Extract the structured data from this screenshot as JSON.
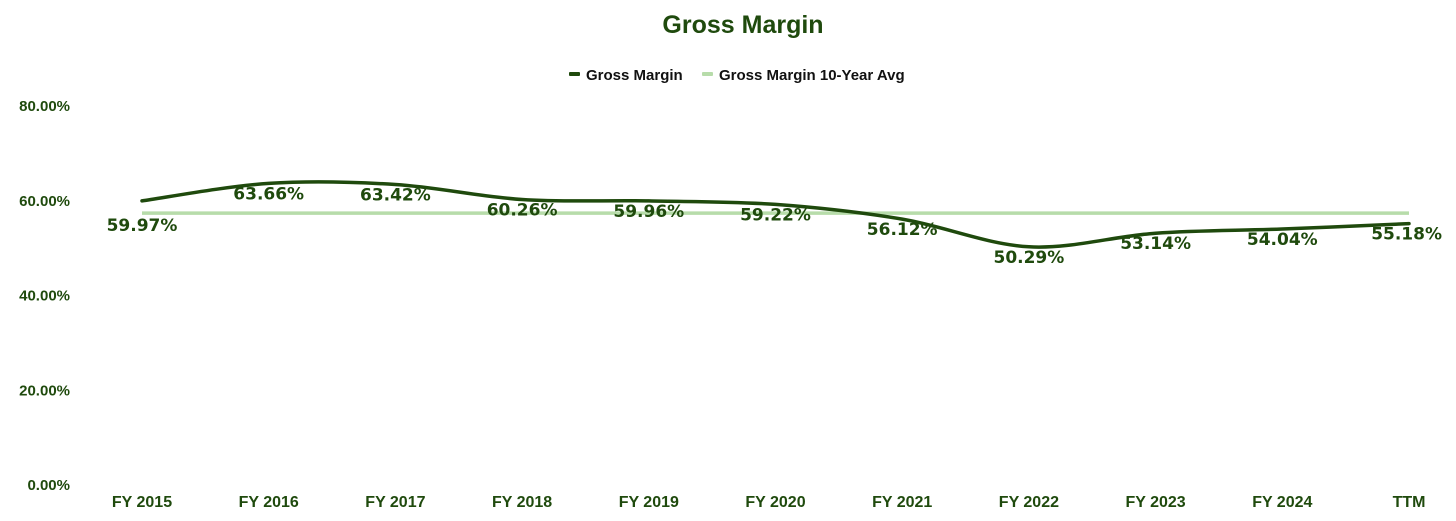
{
  "chart_data": {
    "type": "line",
    "title": "Gross Margin",
    "categories": [
      "FY 2015",
      "FY 2016",
      "FY 2017",
      "FY 2018",
      "FY 2019",
      "FY 2020",
      "FY 2021",
      "FY 2022",
      "FY 2023",
      "FY 2024",
      "TTM"
    ],
    "series": [
      {
        "name": "Gross Margin",
        "color": "#1f4a0d",
        "values": [
          59.97,
          63.66,
          63.42,
          60.26,
          59.96,
          59.22,
          56.12,
          50.29,
          53.14,
          54.04,
          55.18
        ],
        "labels": [
          "59.97%",
          "63.66%",
          "63.42%",
          "60.26%",
          "59.96%",
          "59.22%",
          "56.12%",
          "50.29%",
          "53.14%",
          "54.04%",
          "55.18%"
        ]
      },
      {
        "name": "Gross Margin 10-Year Avg",
        "color": "#b7dcaa",
        "values": [
          57.4,
          57.4,
          57.4,
          57.4,
          57.4,
          57.4,
          57.4,
          57.4,
          57.4,
          57.4,
          57.4
        ]
      }
    ],
    "ylim": [
      0,
      80
    ],
    "yticks": [
      0,
      20,
      40,
      60,
      80
    ],
    "ytick_labels": [
      "0.00%",
      "20.00%",
      "40.00%",
      "60.00%",
      "80.00%"
    ],
    "xlabel": "",
    "ylabel": "",
    "legend_position": "top-center",
    "grid": false
  }
}
